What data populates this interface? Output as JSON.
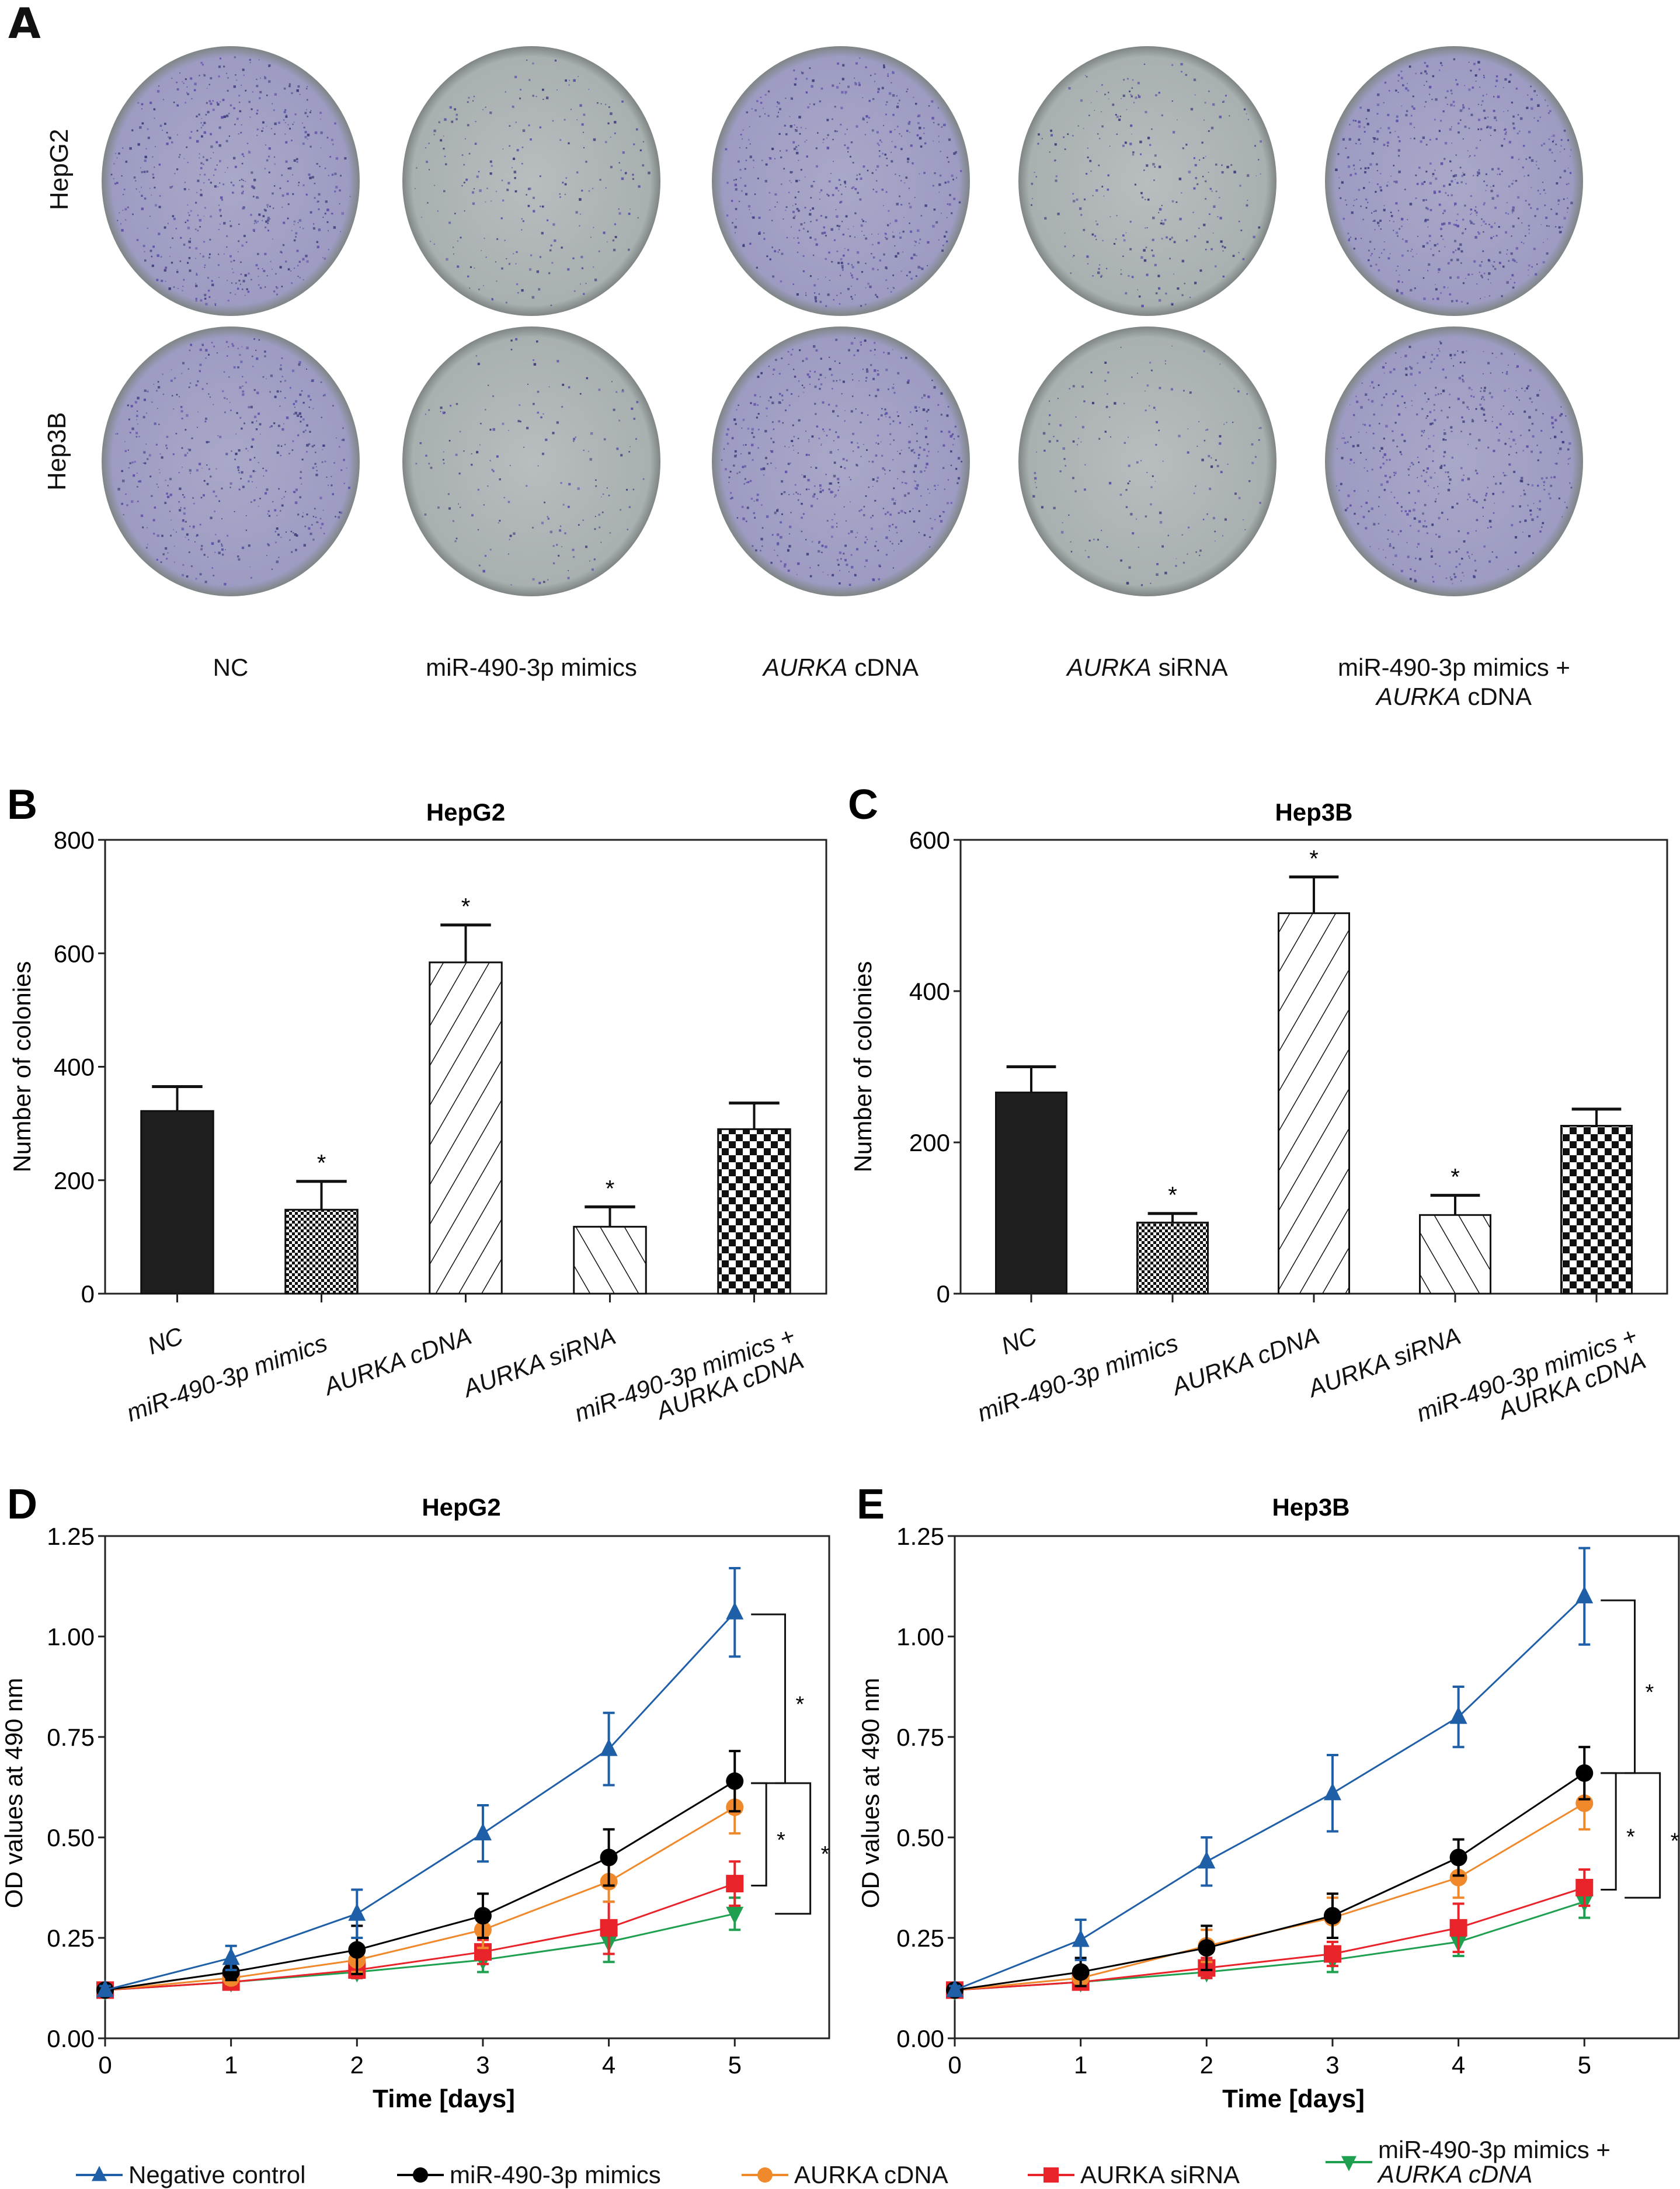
{
  "panels": {
    "A": {
      "letter": "A",
      "rows": [
        "HepG2",
        "Hep3B"
      ],
      "columns": [
        {
          "pre_italic": "",
          "italic": "",
          "text": "NC"
        },
        {
          "pre_italic": "",
          "italic": "",
          "text": "miR-490-3p mimics"
        },
        {
          "pre_italic": "",
          "italic": "AURKA",
          "text": " cDNA"
        },
        {
          "pre_italic": "",
          "italic": "AURKA",
          "text": " siRNA"
        },
        {
          "pre_italic": "miR-490-3p mimics +",
          "italic": "AURKA",
          "text": " cDNA"
        }
      ],
      "dish_density": [
        [
          0.85,
          0.35,
          0.8,
          0.4,
          0.9
        ],
        [
          0.7,
          0.25,
          0.8,
          0.25,
          0.75
        ]
      ],
      "dish_colors": {
        "stain": "#5b4fa8",
        "plate": "#b9bbc2",
        "plate_dark": "#8f9898"
      }
    },
    "legend": [
      {
        "label": "Negative control",
        "color": "#1f5fa8",
        "marker": "triangle-up"
      },
      {
        "label": "miR-490-3p mimics",
        "color": "#000000",
        "marker": "circle"
      },
      {
        "label": "AURKA cDNA",
        "color": "#f0892b",
        "marker": "circle"
      },
      {
        "label": "AURKA siRNA",
        "color": "#e8232a",
        "marker": "square"
      },
      {
        "label": "miR-490-3p mimics + AURKA cDNA",
        "color": "#1fa050",
        "marker": "triangle-down"
      }
    ]
  },
  "chart_data": [
    {
      "id": "B",
      "letter": "B",
      "type": "bar",
      "title": "HepG2",
      "xlabel": "",
      "ylabel": "Number of colonies",
      "ylim": [
        0,
        800
      ],
      "yticks": [
        0,
        200,
        400,
        600,
        800
      ],
      "categories": [
        "NC",
        "miR-490-3p mimics",
        "AURKA cDNA",
        "AURKA siRNA",
        "miR-490-3p mimics + AURKA cDNA"
      ],
      "values": [
        322,
        148,
        584,
        118,
        290
      ],
      "error_upper": [
        365,
        198,
        650,
        153,
        336
      ],
      "patterns": [
        "solid",
        "fine-check",
        "diag-right",
        "diag-left",
        "checker"
      ],
      "significance": [
        "",
        "*",
        "*",
        "*",
        ""
      ]
    },
    {
      "id": "C",
      "letter": "C",
      "type": "bar",
      "title": "Hep3B",
      "xlabel": "",
      "ylabel": "Number of colonies",
      "ylim": [
        0,
        600
      ],
      "yticks": [
        0,
        200,
        400,
        600
      ],
      "categories": [
        "NC",
        "miR-490-3p mimics",
        "AURKA cDNA",
        "AURKA siRNA",
        "miR-490-3p mimics + AURKA cDNA"
      ],
      "values": [
        266,
        94,
        503,
        104,
        222
      ],
      "error_upper": [
        300,
        106,
        551,
        130,
        244
      ],
      "patterns": [
        "solid",
        "fine-check",
        "diag-right",
        "diag-left",
        "checker"
      ],
      "significance": [
        "",
        "*",
        "*",
        "*",
        ""
      ]
    },
    {
      "id": "D",
      "letter": "D",
      "type": "line",
      "title": "HepG2",
      "xlabel": "Time [days]",
      "ylabel": "OD values at 490 nm",
      "x": [
        0,
        1,
        2,
        3,
        4,
        5
      ],
      "xlim": [
        0,
        5.75
      ],
      "ylim": [
        0,
        1.25
      ],
      "yticks": [
        "0.00",
        "0.25",
        "0.50",
        "0.75",
        "1.00",
        "1.25"
      ],
      "series": [
        {
          "name": "Negative control",
          "color": "#1f5fa8",
          "marker": "triangle-up",
          "values": [
            0.12,
            0.2,
            0.31,
            0.51,
            0.72,
            1.06
          ],
          "err": [
            0.01,
            0.03,
            0.06,
            0.07,
            0.09,
            0.11
          ]
        },
        {
          "name": "miR-490-3p mimics",
          "color": "#000000",
          "marker": "circle",
          "values": [
            0.12,
            0.165,
            0.22,
            0.305,
            0.45,
            0.64
          ],
          "err": [
            0.01,
            0.02,
            0.06,
            0.055,
            0.07,
            0.075
          ]
        },
        {
          "name": "AURKA cDNA",
          "color": "#f0892b",
          "marker": "circle",
          "values": [
            0.12,
            0.15,
            0.195,
            0.27,
            0.39,
            0.575
          ],
          "err": [
            0.01,
            0.015,
            0.03,
            0.045,
            0.05,
            0.065
          ]
        },
        {
          "name": "AURKA siRNA",
          "color": "#e8232a",
          "marker": "square",
          "values": [
            0.12,
            0.14,
            0.17,
            0.215,
            0.275,
            0.385
          ],
          "err": [
            0.01,
            0.01,
            0.02,
            0.03,
            0.065,
            0.055
          ]
        },
        {
          "name": "miR-490-3p mimics + AURKA cDNA",
          "color": "#1fa050",
          "marker": "triangle-down",
          "values": [
            0.12,
            0.14,
            0.165,
            0.195,
            0.24,
            0.31
          ],
          "err": [
            0.01,
            0.01,
            0.015,
            0.03,
            0.05,
            0.04
          ]
        }
      ],
      "brackets": [
        {
          "from": 1.055,
          "to": 0.635,
          "label": "*"
        },
        {
          "from": 0.635,
          "to": 0.38,
          "label": "*"
        },
        {
          "from": 0.635,
          "to": 0.31,
          "label": "*"
        }
      ]
    },
    {
      "id": "E",
      "letter": "E",
      "type": "line",
      "title": "Hep3B",
      "xlabel": "Time [days]",
      "ylabel": "OD values at 490 nm",
      "x": [
        0,
        1,
        2,
        3,
        4,
        5
      ],
      "xlim": [
        0,
        5.75
      ],
      "ylim": [
        0,
        1.25
      ],
      "yticks": [
        "0.00",
        "0.25",
        "0.50",
        "0.75",
        "1.00",
        "1.25"
      ],
      "series": [
        {
          "name": "Negative control",
          "color": "#1f5fa8",
          "marker": "triangle-up",
          "values": [
            0.12,
            0.245,
            0.44,
            0.61,
            0.8,
            1.1
          ],
          "err": [
            0.01,
            0.05,
            0.06,
            0.095,
            0.075,
            0.12
          ]
        },
        {
          "name": "miR-490-3p mimics",
          "color": "#000000",
          "marker": "circle",
          "values": [
            0.12,
            0.165,
            0.225,
            0.305,
            0.45,
            0.66
          ],
          "err": [
            0.01,
            0.035,
            0.055,
            0.055,
            0.045,
            0.065
          ]
        },
        {
          "name": "AURKA cDNA",
          "color": "#f0892b",
          "marker": "circle",
          "values": [
            0.12,
            0.15,
            0.23,
            0.3,
            0.4,
            0.585
          ],
          "err": [
            0.01,
            0.02,
            0.04,
            0.05,
            0.05,
            0.065
          ]
        },
        {
          "name": "AURKA siRNA",
          "color": "#e8232a",
          "marker": "square",
          "values": [
            0.12,
            0.14,
            0.175,
            0.21,
            0.275,
            0.375
          ],
          "err": [
            0.01,
            0.01,
            0.025,
            0.03,
            0.06,
            0.045
          ]
        },
        {
          "name": "miR-490-3p mimics + AURKA cDNA",
          "color": "#1fa050",
          "marker": "triangle-down",
          "values": [
            0.12,
            0.14,
            0.165,
            0.195,
            0.24,
            0.34
          ],
          "err": [
            0.01,
            0.01,
            0.015,
            0.03,
            0.035,
            0.04
          ]
        }
      ],
      "brackets": [
        {
          "from": 1.09,
          "to": 0.66,
          "label": "*"
        },
        {
          "from": 0.66,
          "to": 0.37,
          "label": "*"
        },
        {
          "from": 0.66,
          "to": 0.35,
          "label": "*"
        }
      ]
    }
  ]
}
